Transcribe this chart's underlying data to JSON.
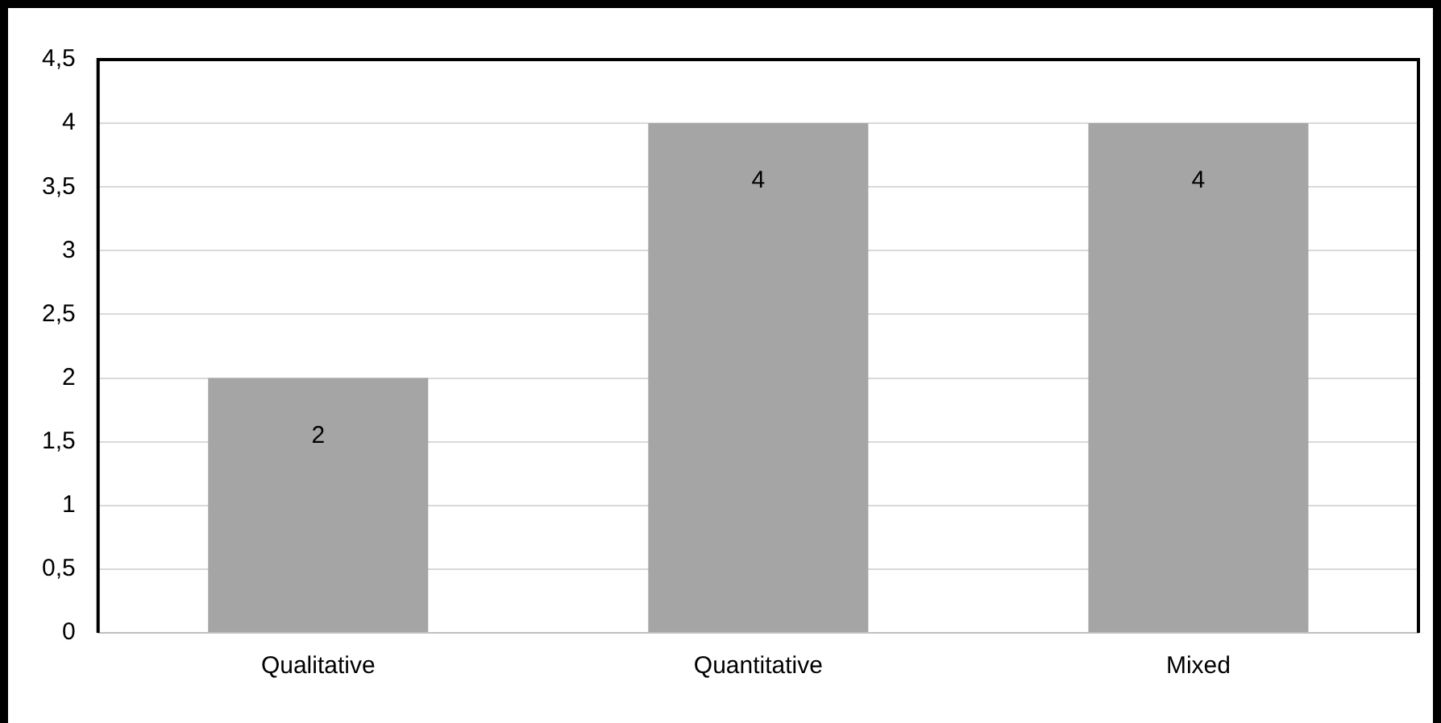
{
  "chart_data": {
    "type": "bar",
    "categories": [
      "Qualitative",
      "Quantitative",
      "Mixed"
    ],
    "values": [
      2,
      4,
      4
    ],
    "color": "#a5a5a5",
    "ylim": [
      0,
      4.5
    ],
    "yticks": [
      0,
      {
        "value": 0.5,
        "label": "0,5"
      },
      1,
      {
        "value": 1.5,
        "label": "1,5"
      },
      2,
      {
        "value": 2.5,
        "label": "2,5"
      },
      3,
      {
        "value": 3.5,
        "label": "3,5"
      },
      4,
      {
        "value": 4.5,
        "label": "4,5"
      }
    ],
    "grid": "y",
    "data_labels": true
  }
}
